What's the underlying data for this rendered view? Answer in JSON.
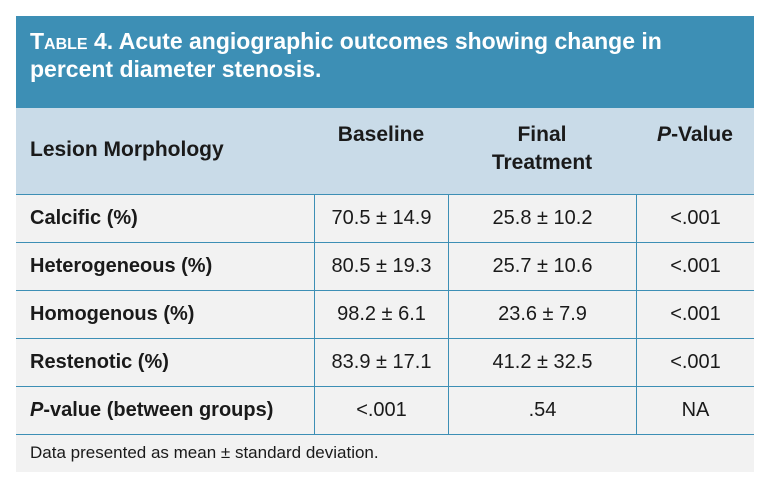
{
  "table": {
    "title_label": "Table 4.",
    "title_rest": " Acute angiographic outcomes showing change in percent diameter stenosis.",
    "headers": {
      "morphology": "Lesion Morphology",
      "baseline": "Baseline",
      "final": "Final Treatment",
      "p_italic": "P",
      "p_rest": "-Value"
    },
    "rows": [
      {
        "label": "Calcific (%)",
        "baseline": "70.5 ± 14.9",
        "final": "25.8 ± 10.2",
        "p": "<.001"
      },
      {
        "label": "Heterogeneous (%)",
        "baseline": "80.5 ± 19.3",
        "final": "25.7 ± 10.6",
        "p": "<.001"
      },
      {
        "label": "Homogenous (%)",
        "baseline": "98.2 ± 6.1",
        "final": "23.6 ± 7.9",
        "p": "<.001"
      },
      {
        "label": "Restenotic (%)",
        "baseline": "83.9 ± 17.1",
        "final": "41.2 ± 32.5",
        "p": "<.001"
      }
    ],
    "summary_row": {
      "label_italic": "P",
      "label_rest": "-value (between groups)",
      "baseline": "<.001",
      "final": ".54",
      "p": "NA"
    },
    "footnote": "Data presented as mean ± standard deviation.",
    "colors": {
      "accent": "#3d8fb5",
      "header_bg": "#c9dbe8",
      "body_bg": "#f2f2f2"
    }
  }
}
